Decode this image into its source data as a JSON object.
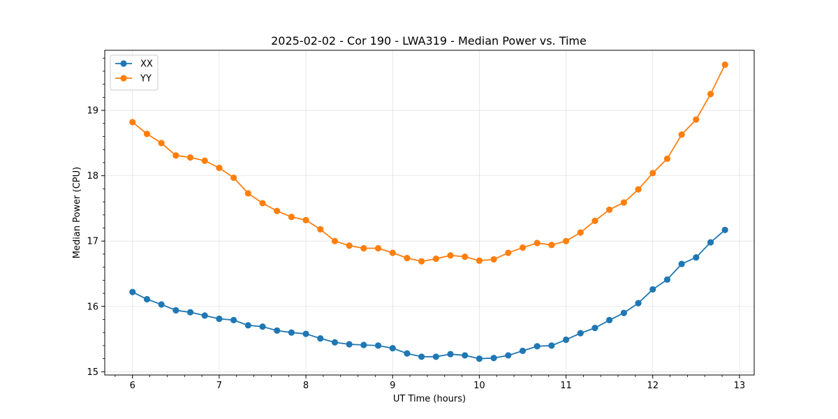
{
  "chart_data": {
    "type": "line",
    "title": "2025-02-02 - Cor 190 - LWA319 - Median Power vs. Time",
    "xlabel": "UT Time (hours)",
    "ylabel": "Median Power (CPU)",
    "xlim": [
      5.68,
      13.17
    ],
    "ylim": [
      14.95,
      19.92
    ],
    "xticks": [
      6,
      7,
      8,
      9,
      10,
      11,
      12,
      13
    ],
    "yticks": [
      15,
      16,
      17,
      18,
      19
    ],
    "grid": true,
    "legend_position": "upper-left",
    "x": [
      6.0,
      6.1667,
      6.3333,
      6.5,
      6.6667,
      6.8333,
      7.0,
      7.1667,
      7.3333,
      7.5,
      7.6667,
      7.8333,
      8.0,
      8.1667,
      8.3333,
      8.5,
      8.6667,
      8.8333,
      9.0,
      9.1667,
      9.3333,
      9.5,
      9.6667,
      9.8333,
      10.0,
      10.1667,
      10.3333,
      10.5,
      10.6667,
      10.8333,
      11.0,
      11.1667,
      11.3333,
      11.5,
      11.6667,
      11.8333,
      12.0,
      12.1667,
      12.3333,
      12.5,
      12.6667,
      12.8333
    ],
    "series": [
      {
        "name": "XX",
        "color": "#1f77b4",
        "values": [
          16.22,
          16.11,
          16.03,
          15.94,
          15.91,
          15.86,
          15.81,
          15.79,
          15.71,
          15.69,
          15.63,
          15.6,
          15.58,
          15.51,
          15.45,
          15.42,
          15.41,
          15.4,
          15.36,
          15.28,
          15.23,
          15.23,
          15.27,
          15.25,
          15.2,
          15.21,
          15.25,
          15.32,
          15.39,
          15.4,
          15.49,
          15.59,
          15.67,
          15.79,
          15.9,
          16.05,
          16.26,
          16.41,
          16.65,
          16.75,
          16.98,
          17.17
        ]
      },
      {
        "name": "YY",
        "color": "#ff7f0e",
        "values": [
          18.82,
          18.64,
          18.5,
          18.31,
          18.28,
          18.23,
          18.12,
          17.97,
          17.73,
          17.58,
          17.46,
          17.37,
          17.32,
          17.18,
          17.0,
          16.93,
          16.89,
          16.89,
          16.82,
          16.74,
          16.69,
          16.73,
          16.78,
          16.76,
          16.7,
          16.72,
          16.82,
          16.9,
          16.97,
          16.94,
          17.0,
          17.13,
          17.31,
          17.48,
          17.59,
          17.79,
          18.04,
          18.26,
          18.63,
          18.86,
          19.25,
          19.7
        ]
      }
    ]
  }
}
